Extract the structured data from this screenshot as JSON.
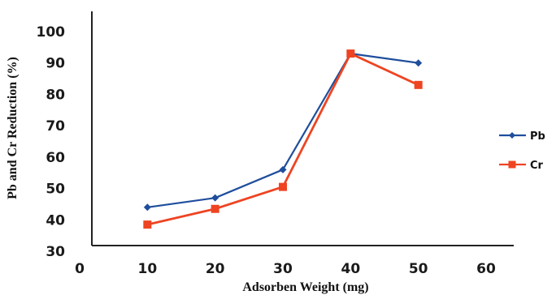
{
  "chart_data": {
    "type": "line",
    "x": [
      10,
      20,
      30,
      40,
      50
    ],
    "series": [
      {
        "name": "Pb",
        "values": [
          44,
          47,
          56,
          93,
          90
        ],
        "color": "#1f4e9c",
        "marker": "diamond"
      },
      {
        "name": "Cr",
        "values": [
          38.5,
          43.5,
          50.5,
          93,
          83
        ],
        "color": "#ee4422",
        "marker": "square"
      }
    ],
    "xticks": [
      "0",
      "10",
      "20",
      "30",
      "40",
      "50",
      "60"
    ],
    "yticks": [
      "30",
      "40",
      "50",
      "60",
      "70",
      "80",
      "90",
      "100"
    ],
    "xlim": [
      0,
      60
    ],
    "ylim": [
      30,
      100
    ],
    "xlabel": "Adsorben Weight (mg)",
    "ylabel": "Pb and Cr Reduction (%)",
    "legend_position": "right",
    "grid": false
  }
}
